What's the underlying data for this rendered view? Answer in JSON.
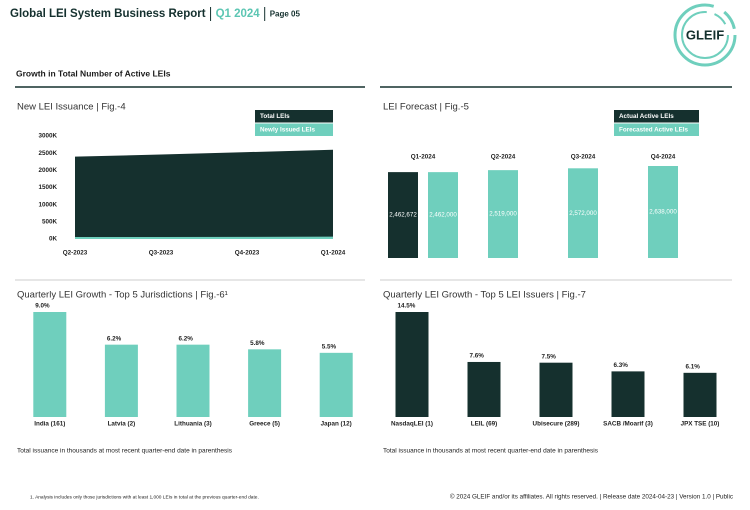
{
  "header": {
    "title": "Global LEI System Business Report",
    "quarter": "Q1 2024",
    "page": "Page 05"
  },
  "logo": "GLEIF",
  "section_title": "Growth in Total Number of Active LEIs",
  "chart_data": [
    {
      "type": "area",
      "title": "New LEI Issuance | Fig.-4",
      "categories": [
        "Q2-2023",
        "Q3-2023",
        "Q4-2023",
        "Q1-2024"
      ],
      "series": [
        {
          "name": "Total LEIs",
          "color": "#15302e",
          "values": [
            2400,
            2460,
            2530,
            2600
          ]
        },
        {
          "name": "Newly Issued LEIs",
          "color": "#6fcfbd",
          "values": [
            60,
            58,
            62,
            70
          ]
        }
      ],
      "ylim": [
        0,
        3000
      ],
      "yticks": [
        {
          "value": 0,
          "label": "0K"
        },
        {
          "value": 500,
          "label": "500K"
        },
        {
          "value": 1000,
          "label": "1000K"
        },
        {
          "value": 1500,
          "label": "1500K"
        },
        {
          "value": 2000,
          "label": "2000K"
        },
        {
          "value": 2500,
          "label": "2500K"
        },
        {
          "value": 3000,
          "label": "3000K"
        }
      ]
    },
    {
      "type": "grouped-bar",
      "title": "LEI Forecast | Fig.-5",
      "categories": [
        "Q1-2024",
        "Q2-2024",
        "Q3-2024",
        "Q4-2024"
      ],
      "series": [
        {
          "name": "Actual Active LEIs",
          "color": "#15302e",
          "values": [
            2462672,
            null,
            null,
            null
          ],
          "value_labels": [
            "2,462,672",
            null,
            null,
            null
          ]
        },
        {
          "name": "Forecasted Active LEIs",
          "color": "#6fcfbd",
          "values": [
            2462000,
            2519000,
            2572000,
            2638000
          ],
          "value_labels": [
            "2,462,000",
            "2,519,000",
            "2,572,000",
            "2,638,000"
          ]
        }
      ]
    },
    {
      "type": "bar",
      "title": "Quarterly LEI Growth - Top 5 Jurisdictions | Fig.-6¹",
      "categories": [
        "India (161)",
        "Latvia (2)",
        "Lithuania (3)",
        "Greece (5)",
        "Japan (12)"
      ],
      "values": [
        9.0,
        6.2,
        6.2,
        5.8,
        5.5
      ],
      "value_labels": [
        "9.0%",
        "6.2%",
        "6.2%",
        "5.8%",
        "5.5%"
      ],
      "color": "#6fcfbd",
      "note": "Total issuance in thousands at most recent quarter-end date in parenthesis"
    },
    {
      "type": "bar",
      "title": "Quarterly LEI Growth - Top 5 LEI Issuers | Fig.-7",
      "categories": [
        "NasdaqLEI (1)",
        "LEIL (69)",
        "Ubisecure (289)",
        "SACB /Moarif (3)",
        "JPX TSE (10)"
      ],
      "values": [
        14.5,
        7.6,
        7.5,
        6.3,
        6.1
      ],
      "value_labels": [
        "14.5%",
        "7.6%",
        "7.5%",
        "6.3%",
        "6.1%"
      ],
      "color": "#15302e",
      "note": "Total issuance in thousands at most recent quarter-end date in parenthesis"
    }
  ],
  "footnote": "1. Analysis includes only those jurisdictions with at least 1,000 LEIs in total at the previous quarter-end date.",
  "footer": "© 2024 GLEIF and/or its affiliates. All rights reserved. | Release date 2024-04-23 | Version 1.0 | Public"
}
